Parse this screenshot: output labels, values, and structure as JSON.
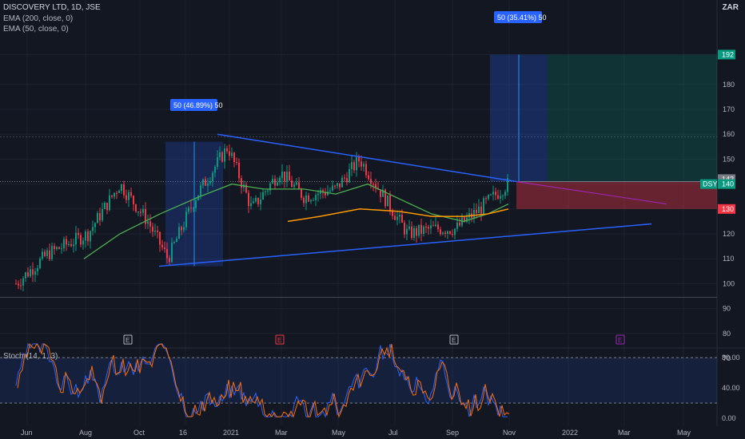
{
  "header": {
    "title": "DISCOVERY LTD, 1D, JSE",
    "indicators": [
      "EMA (200, close, 0)",
      "EMA (50, close, 0)"
    ],
    "currency": "ZAR",
    "stoch_label": "Stoch (14, 1, 3)"
  },
  "annotations": {
    "left_measure": "50 (46.89%) 50",
    "right_measure": "50 (35.41%) 50",
    "symbol": "DSY"
  },
  "chart_data": {
    "type": "candlestick",
    "title": "DISCOVERY LTD, 1D, JSE",
    "y_axis": {
      "ticks": [
        70,
        80,
        90,
        100,
        110,
        120,
        130,
        140,
        150,
        160,
        170,
        180,
        192
      ],
      "range": [
        68,
        197
      ]
    },
    "x_axis": {
      "ticks": [
        "Jun",
        "Aug",
        "Oct",
        "16",
        "2021",
        "Mar",
        "May",
        "Jul",
        "Sep",
        "Nov",
        "2022",
        "Mar",
        "May"
      ]
    },
    "price_labels": [
      {
        "text": "192",
        "value": 192,
        "color": "#089981"
      },
      {
        "text": "142",
        "value": 142,
        "color": "#787b86"
      },
      {
        "text": "140",
        "value": 140,
        "color": "#089981"
      },
      {
        "text": "130",
        "value": 130,
        "color": "#f23645"
      }
    ],
    "close_approx": [
      {
        "date": "Jun",
        "value": 100
      },
      {
        "date": "Aug",
        "value": 120
      },
      {
        "date": "Sep",
        "value": 145
      },
      {
        "date": "Oct",
        "value": 112
      },
      {
        "date": "Nov",
        "value": 128
      },
      {
        "date": "Dec",
        "value": 158
      },
      {
        "date": "Jan",
        "value": 130
      },
      {
        "date": "Feb",
        "value": 148
      },
      {
        "date": "Mar",
        "value": 140
      },
      {
        "date": "Apr",
        "value": 136
      },
      {
        "date": "May",
        "value": 150
      },
      {
        "date": "Jun",
        "value": 138
      },
      {
        "date": "Jul",
        "value": 120
      },
      {
        "date": "Aug",
        "value": 122
      },
      {
        "date": "Sep",
        "value": 125
      },
      {
        "date": "Oct",
        "value": 138
      },
      {
        "date": "Nov",
        "value": 141
      }
    ],
    "lines": [
      {
        "name": "descending trendline",
        "from": 160,
        "to": 131
      },
      {
        "name": "ascending trendline",
        "from": 107,
        "to": 124
      },
      {
        "name": "EMA 50",
        "color": "#4caf50"
      },
      {
        "name": "EMA 200",
        "color": "#ff9800"
      }
    ],
    "zones": {
      "target": 192,
      "entry": 141,
      "stop": 130
    },
    "earnings_markers": [
      "E",
      "E",
      "E",
      "E"
    ],
    "stochastic": {
      "ticks": [
        "80.00",
        "40.00",
        "0.00"
      ],
      "range": [
        0,
        100
      ],
      "upper": 80,
      "lower": 20
    }
  }
}
